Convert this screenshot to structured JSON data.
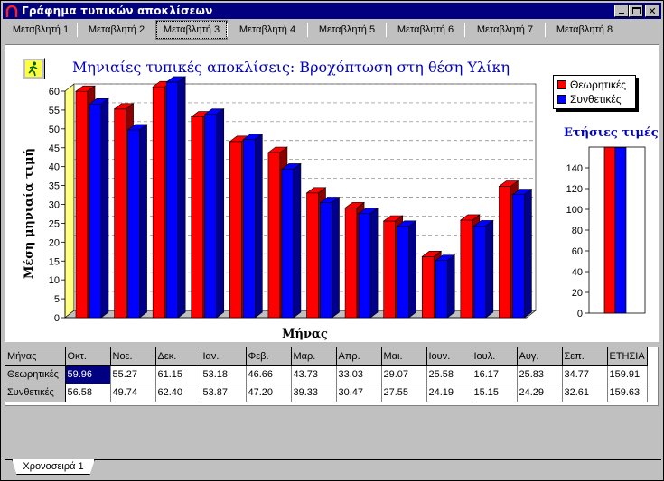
{
  "window": {
    "title": "Γράφημα τυπικών αποκλίσεων"
  },
  "tabs": [
    "Μεταβλητή 1",
    "Μεταβλητή 2",
    "Μεταβλητή 3",
    "Μεταβλητή 4",
    "Μεταβλητή 5",
    "Μεταβλητή 6",
    "Μεταβλητή 7",
    "Μεταβλητή 8"
  ],
  "active_tab": 2,
  "run_button": {
    "icon": "running-person-icon"
  },
  "chart_data": [
    {
      "type": "bar",
      "title": "Μηνιαίες τυπικές αποκλίσεις: Βροχόπτωση στη θέση Υλίκη",
      "xlabel": "Μήνας",
      "ylabel": "Μέση μηνιαία τιμή",
      "ylim": [
        0,
        60
      ],
      "yticks": [
        0,
        5,
        10,
        15,
        20,
        25,
        30,
        35,
        40,
        45,
        50,
        55,
        60
      ],
      "grid": true,
      "legend_position": "top-right",
      "categories": [
        "Οκτ.",
        "Νοε.",
        "Δεκ.",
        "Ιαν.",
        "Φεβ.",
        "Μαρ.",
        "Απρ.",
        "Μαι.",
        "Ιουν.",
        "Ιουλ.",
        "Αυγ.",
        "Σεπ."
      ],
      "series": [
        {
          "name": "Θεωρητικές",
          "color": "#ff0000",
          "values": [
            59.96,
            55.27,
            61.15,
            53.18,
            46.66,
            43.73,
            33.03,
            29.07,
            25.58,
            16.17,
            25.83,
            34.77
          ]
        },
        {
          "name": "Συνθετικές",
          "color": "#0000ff",
          "values": [
            56.58,
            49.74,
            62.4,
            53.87,
            47.2,
            39.33,
            30.47,
            27.55,
            24.19,
            15.15,
            24.29,
            32.61
          ]
        }
      ]
    },
    {
      "type": "bar",
      "title": "Ετήσιες τιμές",
      "ylim": [
        0,
        160
      ],
      "yticks": [
        0,
        20,
        40,
        60,
        80,
        100,
        120,
        140
      ],
      "categories": [
        "ΕΤΗΣΙΑ"
      ],
      "series": [
        {
          "name": "Θεωρητικές",
          "color": "#ff0000",
          "values": [
            159.91
          ]
        },
        {
          "name": "Συνθετικές",
          "color": "#0000ff",
          "values": [
            159.63
          ]
        }
      ]
    }
  ],
  "table": {
    "header": [
      "Μήνας",
      "Οκτ.",
      "Νοε.",
      "Δεκ.",
      "Ιαν.",
      "Φεβ.",
      "Μαρ.",
      "Απρ.",
      "Μαι.",
      "Ιουν.",
      "Ιουλ.",
      "Αυγ.",
      "Σεπ.",
      "ΕΤΗΣΙΑ"
    ],
    "rows": [
      [
        "Θεωρητικές",
        "59.96",
        "55.27",
        "61.15",
        "53.18",
        "46.66",
        "43.73",
        "33.03",
        "29.07",
        "25.58",
        "16.17",
        "25.83",
        "34.77",
        "159.91"
      ],
      [
        "Συνθετικές",
        "56.58",
        "49.74",
        "62.40",
        "53.87",
        "47.20",
        "39.33",
        "30.47",
        "27.55",
        "24.19",
        "15.15",
        "24.29",
        "32.61",
        "159.63"
      ]
    ]
  },
  "sheet_tab": "Χρονοσειρά 1"
}
